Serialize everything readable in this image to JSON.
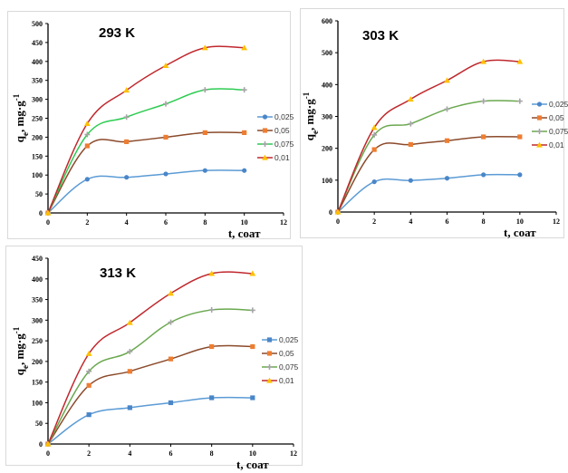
{
  "colors": {
    "series_0025_line": "#5b9bd5",
    "series_0025_marker": "#4a86c8",
    "series_005_line": "#8b4a2b",
    "series_005_marker": "#ed7d31",
    "series_0075_line_a": "#2ecc52",
    "series_0075_line_b": "#6aa84f",
    "series_0075_marker": "#a5a5a5",
    "series_001_line": "#c0282d",
    "series_001_marker": "#ffc000",
    "axis": "#000000"
  },
  "chart_data": [
    {
      "type": "line",
      "title": "293 K",
      "xlabel": "t,  соат",
      "ylabel": "qe, mg·g-1",
      "xlim": [
        0,
        12
      ],
      "ylim": [
        0,
        500
      ],
      "x_ticks": [
        "0",
        "2",
        "4",
        "6",
        "8",
        "10",
        "12"
      ],
      "y_ticks": [
        "0",
        "50",
        "100",
        "150",
        "200",
        "250",
        "300",
        "350",
        "400",
        "450",
        "500"
      ],
      "grid": false,
      "legend_position": "right",
      "x": [
        0,
        2,
        4,
        6,
        8,
        10
      ],
      "series": [
        {
          "name": "0,025",
          "marker": "circle",
          "values": [
            0,
            89,
            94,
            103,
            112,
            112
          ]
        },
        {
          "name": "0,05",
          "marker": "square",
          "values": [
            0,
            177,
            188,
            200,
            212,
            212
          ]
        },
        {
          "name": "0,075",
          "marker": "plus",
          "values": [
            0,
            207,
            253,
            288,
            325,
            325
          ]
        },
        {
          "name": "0,01",
          "marker": "triangle",
          "values": [
            0,
            236,
            324,
            389,
            436,
            436
          ]
        }
      ]
    },
    {
      "type": "line",
      "title": "303 K",
      "xlabel": "t,  соат",
      "ylabel": "qe, mg·g-1",
      "xlim": [
        0,
        12
      ],
      "ylim": [
        0,
        600
      ],
      "x_ticks": [
        "0",
        "2",
        "4",
        "6",
        "8",
        "10",
        "12"
      ],
      "y_ticks": [
        "0",
        "100",
        "200",
        "300",
        "400",
        "500",
        "600"
      ],
      "grid": false,
      "legend_position": "right",
      "x": [
        0,
        2,
        4,
        6,
        8,
        10
      ],
      "series": [
        {
          "name": "0,025",
          "marker": "circle",
          "values": [
            0,
            95,
            99,
            106,
            117,
            117
          ]
        },
        {
          "name": "0,05",
          "marker": "square",
          "values": [
            0,
            196,
            212,
            224,
            236,
            236
          ]
        },
        {
          "name": "0,075",
          "marker": "plus",
          "values": [
            0,
            242,
            277,
            323,
            348,
            348
          ]
        },
        {
          "name": "0,01",
          "marker": "triangle",
          "values": [
            0,
            265,
            354,
            413,
            472,
            472
          ]
        }
      ]
    },
    {
      "type": "line",
      "title": "313 K",
      "xlabel": "t,  соат",
      "ylabel": "qe, mg·g-1",
      "xlim": [
        0,
        12
      ],
      "ylim": [
        0,
        450
      ],
      "x_ticks": [
        "0",
        "2",
        "4",
        "6",
        "8",
        "10",
        "12"
      ],
      "y_ticks": [
        "0",
        "50",
        "100",
        "150",
        "200",
        "250",
        "300",
        "350",
        "400",
        "450"
      ],
      "grid": false,
      "legend_position": "right",
      "x": [
        0,
        2,
        4,
        6,
        8,
        10
      ],
      "series": [
        {
          "name": "0,025",
          "marker": "square",
          "values": [
            0,
            71,
            88,
            100,
            112,
            112
          ]
        },
        {
          "name": "0,05",
          "marker": "square",
          "values": [
            0,
            142,
            176,
            206,
            236,
            236
          ]
        },
        {
          "name": "0,075",
          "marker": "plus",
          "values": [
            0,
            176,
            224,
            295,
            325,
            324
          ]
        },
        {
          "name": "0,01",
          "marker": "triangle",
          "values": [
            0,
            219,
            294,
            365,
            413,
            413
          ]
        }
      ]
    }
  ]
}
